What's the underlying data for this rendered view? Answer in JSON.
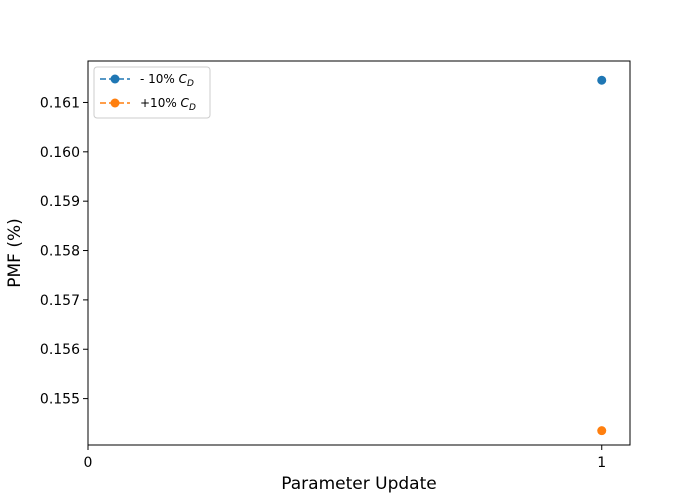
{
  "chart_data": {
    "type": "line",
    "xlabel": "Parameter Update",
    "ylabel": "PMF (%)",
    "xlim": [
      0,
      1.055
    ],
    "ylim": [
      0.15406,
      0.16184
    ],
    "x_ticks": [
      0,
      1
    ],
    "x_tick_labels": [
      "0",
      "1"
    ],
    "y_ticks": [
      0.155,
      0.156,
      0.157,
      0.158,
      0.159,
      0.16,
      0.161
    ],
    "y_tick_labels": [
      "0.155",
      "0.156",
      "0.157",
      "0.158",
      "0.159",
      "0.160",
      "0.161"
    ],
    "grid": false,
    "legend_position": "top-left",
    "series": [
      {
        "name": "- 10% C_D",
        "label_prefix": "- 10% ",
        "label_symbol": "C",
        "label_subscript": "D",
        "color": "#1f77b4",
        "linestyle": "dashed",
        "marker": "circle",
        "x": [
          1
        ],
        "y": [
          0.16145
        ]
      },
      {
        "name": "+10% C_D",
        "label_prefix": "+10% ",
        "label_symbol": "C",
        "label_subscript": "D",
        "color": "#ff7f0e",
        "linestyle": "dashed",
        "marker": "circle",
        "x": [
          1
        ],
        "y": [
          0.15435
        ]
      }
    ]
  }
}
